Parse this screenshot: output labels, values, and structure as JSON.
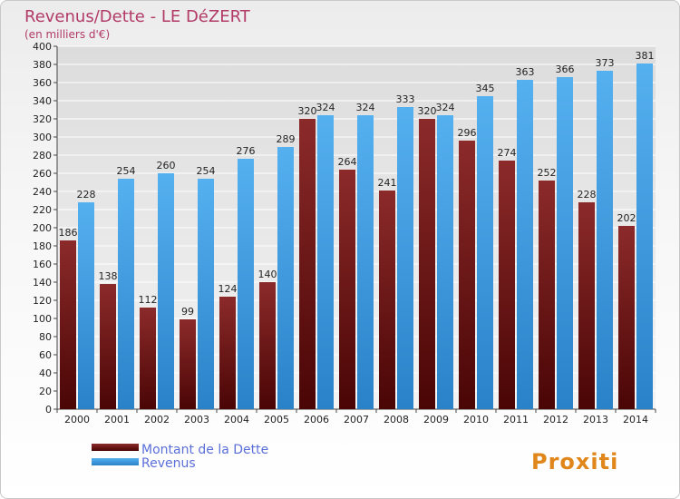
{
  "chart_data": {
    "type": "bar",
    "title": "Revenus/Dette - LE DéZERT",
    "subtitle": "(en milliers d'€)",
    "categories": [
      "2000",
      "2001",
      "2002",
      "2003",
      "2004",
      "2005",
      "2006",
      "2007",
      "2008",
      "2009",
      "2010",
      "2011",
      "2012",
      "2013",
      "2014"
    ],
    "series": [
      {
        "name": "Montant de la Dette",
        "color": "#7a1a1a",
        "values": [
          186,
          138,
          112,
          99,
          124,
          140,
          320,
          264,
          241,
          320,
          296,
          274,
          252,
          228,
          202
        ]
      },
      {
        "name": "Revenus",
        "color": "#3f9de0",
        "values": [
          228,
          254,
          260,
          254,
          276,
          289,
          324,
          324,
          333,
          324,
          345,
          363,
          366,
          373,
          381
        ]
      }
    ],
    "ylim": [
      0,
      400
    ],
    "ytick_step": 20,
    "grid": true,
    "legend_position": "bottom-left"
  },
  "branding": {
    "logo_text": "Proxiti"
  }
}
